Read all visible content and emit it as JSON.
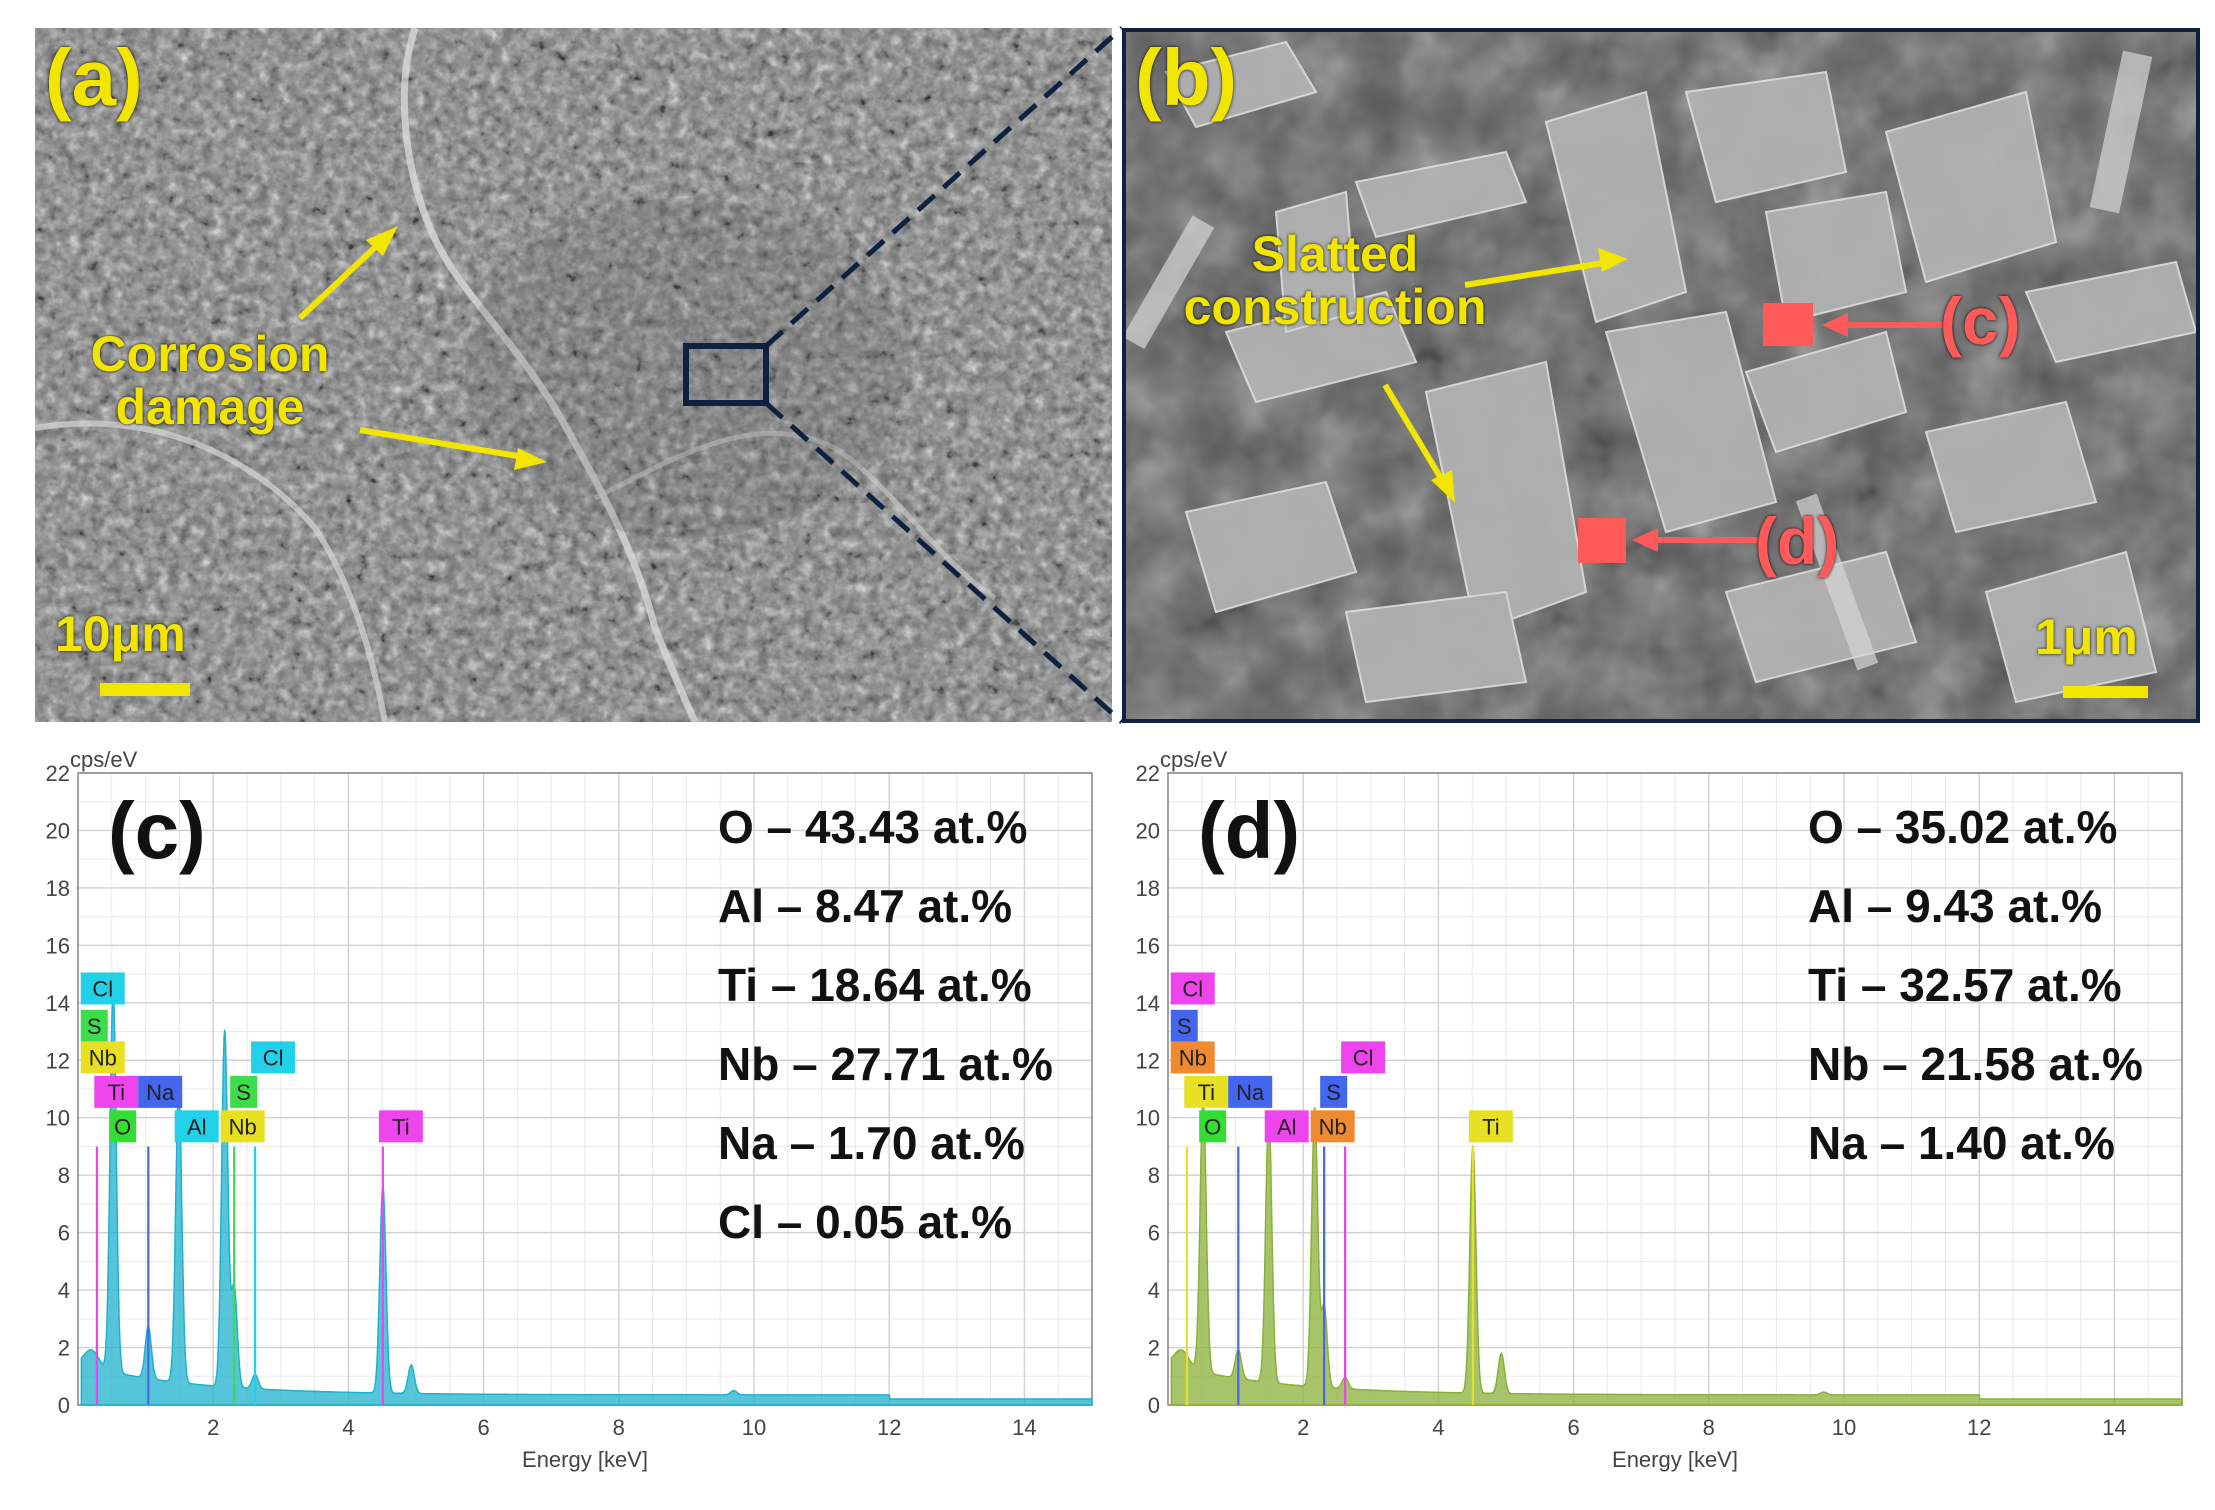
{
  "figure": {
    "panel_a": {
      "label": "(a)",
      "annotation_line1": "Corrosion",
      "annotation_line2": "damage",
      "scale_bar": "10μm"
    },
    "panel_b": {
      "label": "(b)",
      "annotation_line1": "Slatted",
      "annotation_line2": "construction",
      "marker_c": "(c)",
      "marker_d": "(d)",
      "scale_bar": "1μm"
    }
  },
  "colors": {
    "annotation_yellow": "#f2e500",
    "marker_red": "#ff5a5a",
    "frame_navy": "#0e2240"
  },
  "chart_data": [
    {
      "type": "line",
      "panel_label": "(c)",
      "ylabel": "cps/eV",
      "xlabel": "Energy [keV]",
      "xlim": [
        0,
        15
      ],
      "ylim": [
        0,
        22
      ],
      "x_ticks": [
        2,
        4,
        6,
        8,
        10,
        12,
        14
      ],
      "y_ticks": [
        0,
        2,
        4,
        6,
        8,
        10,
        12,
        14,
        16,
        18,
        20,
        22
      ],
      "spectrum_color": "#1fb2cc",
      "peaks": [
        {
          "energy": 0.52,
          "height": 13.4
        },
        {
          "energy": 1.04,
          "height": 1.8
        },
        {
          "energy": 1.49,
          "height": 10.2
        },
        {
          "energy": 2.17,
          "height": 12.4
        },
        {
          "energy": 2.31,
          "height": 3.5
        },
        {
          "energy": 2.62,
          "height": 0.5
        },
        {
          "energy": 4.51,
          "height": 7.2
        },
        {
          "energy": 4.93,
          "height": 1.0
        },
        {
          "energy": 9.7,
          "height": 0.15
        }
      ],
      "element_tags": [
        {
          "label": "Cl",
          "energy": 0.1,
          "y": 14.5,
          "color": "#22d0e8"
        },
        {
          "label": "S",
          "energy": 0.1,
          "y": 13.2,
          "color": "#3ddc4a"
        },
        {
          "label": "Nb",
          "energy": 0.1,
          "y": 12.1,
          "color": "#e8e023"
        },
        {
          "label": "Ti",
          "energy": 0.3,
          "y": 10.9,
          "color": "#ee44ee"
        },
        {
          "label": "Na",
          "energy": 0.95,
          "y": 10.9,
          "color": "#4466ee"
        },
        {
          "label": "O",
          "energy": 0.52,
          "y": 9.7,
          "color": "#33dd33"
        },
        {
          "label": "Al",
          "energy": 1.49,
          "y": 9.7,
          "color": "#22d0e8"
        },
        {
          "label": "Nb",
          "energy": 2.17,
          "y": 9.7,
          "color": "#e8e023"
        },
        {
          "label": "S",
          "energy": 2.31,
          "y": 10.9,
          "color": "#3ddc4a"
        },
        {
          "label": "Cl",
          "energy": 2.62,
          "y": 12.1,
          "color": "#22d0e8"
        },
        {
          "label": "Ti",
          "energy": 4.51,
          "y": 9.7,
          "color": "#ee44ee"
        }
      ],
      "marker_lines": [
        {
          "energy": 0.28,
          "color": "#ee44ee"
        },
        {
          "energy": 1.04,
          "color": "#4466ee"
        },
        {
          "energy": 2.31,
          "color": "#3ddc4a"
        },
        {
          "energy": 2.62,
          "color": "#22d0e8"
        },
        {
          "energy": 4.51,
          "color": "#ee44ee"
        }
      ],
      "composition": [
        "O – 43.43 at.%",
        "Al – 8.47 at.%",
        "Ti – 18.64 at.%",
        "Nb – 27.71 at.%",
        "Na – 1.70 at.%",
        "Cl – 0.05 at.%"
      ]
    },
    {
      "type": "line",
      "panel_label": "(d)",
      "ylabel": "cps/eV",
      "xlabel": "Energy [keV]",
      "xlim": [
        0,
        15
      ],
      "ylim": [
        0,
        22
      ],
      "x_ticks": [
        2,
        4,
        6,
        8,
        10,
        12,
        14
      ],
      "y_ticks": [
        0,
        2,
        4,
        6,
        8,
        10,
        12,
        14,
        16,
        18,
        20,
        22
      ],
      "spectrum_color": "#8ab03a",
      "peaks": [
        {
          "energy": 0.52,
          "height": 9.5
        },
        {
          "energy": 1.04,
          "height": 1.0
        },
        {
          "energy": 1.49,
          "height": 9.4
        },
        {
          "energy": 2.17,
          "height": 9.7
        },
        {
          "energy": 2.31,
          "height": 2.8
        },
        {
          "energy": 2.62,
          "height": 0.4
        },
        {
          "energy": 4.51,
          "height": 8.6
        },
        {
          "energy": 4.93,
          "height": 1.4
        },
        {
          "energy": 9.7,
          "height": 0.1
        }
      ],
      "element_tags": [
        {
          "label": "Cl",
          "energy": 0.1,
          "y": 14.5,
          "color": "#ee44ee"
        },
        {
          "label": "S",
          "energy": 0.1,
          "y": 13.2,
          "color": "#4466ee"
        },
        {
          "label": "Nb",
          "energy": 0.1,
          "y": 12.1,
          "color": "#f08a30"
        },
        {
          "label": "Ti",
          "energy": 0.3,
          "y": 10.9,
          "color": "#e8e023"
        },
        {
          "label": "Na",
          "energy": 0.95,
          "y": 10.9,
          "color": "#4466ee"
        },
        {
          "label": "O",
          "energy": 0.52,
          "y": 9.7,
          "color": "#33dd33"
        },
        {
          "label": "Al",
          "energy": 1.49,
          "y": 9.7,
          "color": "#ee44ee"
        },
        {
          "label": "Nb",
          "energy": 2.17,
          "y": 9.7,
          "color": "#f08a30"
        },
        {
          "label": "S",
          "energy": 2.31,
          "y": 10.9,
          "color": "#4466ee"
        },
        {
          "label": "Cl",
          "energy": 2.62,
          "y": 12.1,
          "color": "#ee44ee"
        },
        {
          "label": "Ti",
          "energy": 4.51,
          "y": 9.7,
          "color": "#e8e023"
        }
      ],
      "marker_lines": [
        {
          "energy": 0.28,
          "color": "#e8e023"
        },
        {
          "energy": 1.04,
          "color": "#4466ee"
        },
        {
          "energy": 2.31,
          "color": "#4466ee"
        },
        {
          "energy": 2.62,
          "color": "#ee44ee"
        },
        {
          "energy": 4.51,
          "color": "#e8e023"
        }
      ],
      "composition": [
        "O – 35.02 at.%",
        "Al – 9.43 at.%",
        "Ti – 32.57 at.%",
        "Nb – 21.58 at.%",
        "Na – 1.40 at.%"
      ]
    }
  ]
}
